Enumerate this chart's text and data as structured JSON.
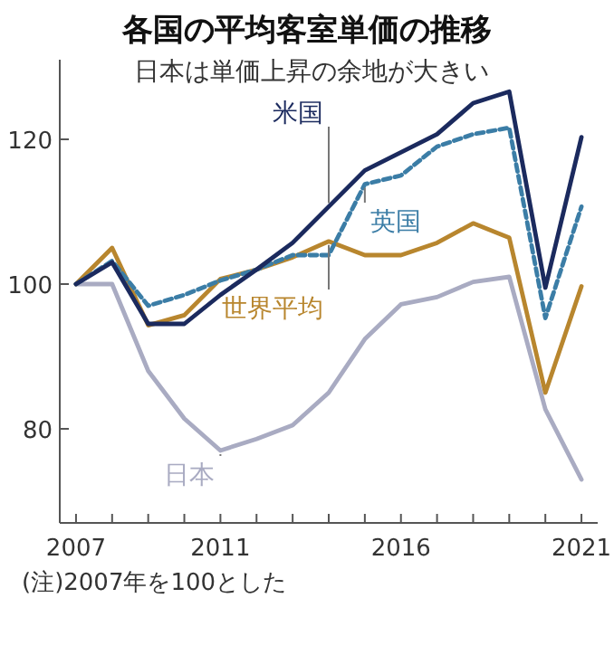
{
  "chart_data": {
    "type": "line",
    "title": "各国の平均客室単価の推移",
    "subtitle": "日本は単価上昇の余地が大きい",
    "x": [
      2007,
      2008,
      2009,
      2010,
      2011,
      2012,
      2013,
      2014,
      2015,
      2016,
      2017,
      2018,
      2019,
      2020,
      2021
    ],
    "series": [
      {
        "name": "米国",
        "color": "#1b2a5e",
        "line_style": "solid",
        "values": [
          100,
          103,
          94.5,
          94.5,
          98.5,
          102,
          105.7,
          110.7,
          115.7,
          118.2,
          120.7,
          125,
          126.6,
          99.5,
          120.3
        ]
      },
      {
        "name": "英国",
        "color": "#3b7da6",
        "line_style": "dashed",
        "values": [
          100,
          103.2,
          97,
          98.5,
          100.5,
          102,
          104,
          104,
          113.8,
          115,
          119,
          120.7,
          121.6,
          95.3,
          110.7
        ]
      },
      {
        "name": "世界平均",
        "color": "#b8862e",
        "line_style": "solid",
        "values": [
          100,
          105,
          94.3,
          95.7,
          100.7,
          102,
          103.7,
          105.9,
          104,
          104,
          105.7,
          108.4,
          106.4,
          85,
          99.7
        ]
      },
      {
        "name": "日本",
        "color": "#a9abc2",
        "line_style": "solid",
        "values": [
          100,
          100,
          88,
          81.4,
          77,
          78.6,
          80.5,
          85,
          92.4,
          97.2,
          98.2,
          100.3,
          101,
          82.7,
          73
        ]
      }
    ],
    "xlim": [
      2006.55,
      2021.45
    ],
    "ylim": [
      67,
      131
    ],
    "xticks": [
      2007,
      {
        "value": 2008,
        "label": null
      },
      {
        "value": 2009,
        "label": null
      },
      {
        "value": 2010,
        "label": null
      },
      2011,
      {
        "value": 2012,
        "label": null
      },
      {
        "value": 2013,
        "label": null
      },
      {
        "value": 2014,
        "label": null
      },
      {
        "value": 2015,
        "label": null
      },
      2016,
      {
        "value": 2017,
        "label": null
      },
      {
        "value": 2018,
        "label": null
      },
      {
        "value": 2019,
        "label": null
      },
      {
        "value": 2020,
        "label": null
      },
      2021
    ],
    "yticks": [
      80,
      100,
      120
    ],
    "grid": false,
    "annotations": [
      "(注)2007年を100とした"
    ]
  }
}
